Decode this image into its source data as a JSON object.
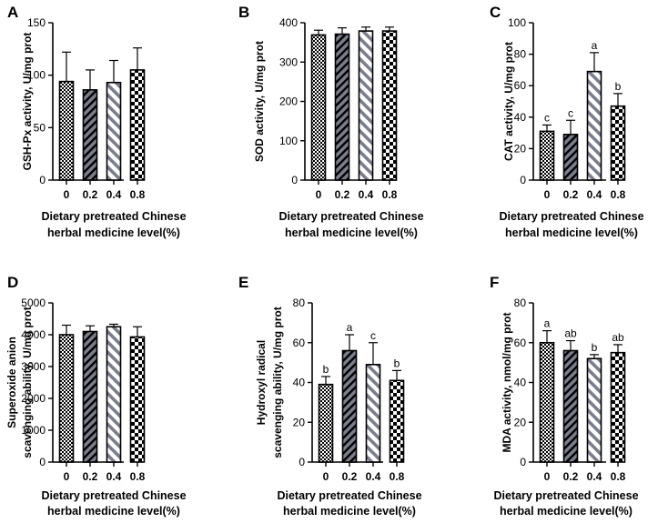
{
  "chart_data": [
    {
      "id": "A",
      "type": "bar",
      "panel_label": "A",
      "categories": [
        "0",
        "0.2",
        "0.4",
        "0.8"
      ],
      "values": [
        94,
        86,
        93,
        105
      ],
      "errors": [
        28,
        19,
        21,
        21
      ],
      "letters": [
        "",
        "",
        "",
        ""
      ],
      "ylabel": "GSH-Px activity, U/mg prot",
      "xlabel_lines": [
        "Dietary pretreated Chinese",
        "herbal medicine level(%)"
      ],
      "ylim": [
        0,
        150
      ],
      "yticks": [
        0,
        50,
        100,
        150
      ],
      "grid": false
    },
    {
      "id": "B",
      "type": "bar",
      "panel_label": "B",
      "categories": [
        "0",
        "0.2",
        "0.4",
        "0.8"
      ],
      "values": [
        369,
        371,
        379,
        379
      ],
      "errors": [
        12,
        16,
        10,
        10
      ],
      "letters": [
        "",
        "",
        "",
        ""
      ],
      "ylabel": "SOD activity, U/mg prot",
      "xlabel_lines": [
        "Dietary pretreated Chinese",
        "herbal medicine level(%)"
      ],
      "ylim": [
        0,
        400
      ],
      "yticks": [
        0,
        100,
        200,
        300,
        400
      ],
      "grid": false
    },
    {
      "id": "C",
      "type": "bar",
      "panel_label": "C",
      "categories": [
        "0",
        "0.2",
        "0.4",
        "0.8"
      ],
      "values": [
        31,
        29,
        69,
        47
      ],
      "errors": [
        4,
        9,
        12,
        8
      ],
      "letters": [
        "c",
        "c",
        "a",
        "b"
      ],
      "ylabel": "CAT activity, U/mg prot",
      "xlabel_lines": [
        "Dietary pretreated Chinese",
        "herbal medicine level(%)"
      ],
      "ylim": [
        0,
        100
      ],
      "yticks": [
        0,
        20,
        40,
        60,
        80,
        100
      ],
      "grid": false
    },
    {
      "id": "D",
      "type": "bar",
      "panel_label": "D",
      "categories": [
        "0",
        "0.2",
        "0.4",
        "0.8"
      ],
      "values": [
        4000,
        4100,
        4250,
        3930
      ],
      "errors": [
        300,
        180,
        80,
        320
      ],
      "letters": [
        "",
        "",
        "",
        ""
      ],
      "ylabel_lines": [
        "Superoxide anion",
        "scavenging ability, U/mg prot"
      ],
      "xlabel_lines": [
        "Dietary pretreated Chinese",
        "herbal medicine level(%)"
      ],
      "ylim": [
        0,
        5000
      ],
      "yticks": [
        0,
        1000,
        2000,
        3000,
        4000,
        5000
      ],
      "grid": false
    },
    {
      "id": "E",
      "type": "bar",
      "panel_label": "E",
      "categories": [
        "0",
        "0.2",
        "0.4",
        "0.8"
      ],
      "values": [
        39,
        56,
        49,
        41
      ],
      "errors": [
        4,
        8,
        11,
        5
      ],
      "letters": [
        "b",
        "a",
        "c",
        "b"
      ],
      "ylabel_lines": [
        "Hydroxyl radical",
        "scavenging ability, U/mg prot"
      ],
      "xlabel_lines": [
        "Dietary pretreated Chinese",
        "herbal medicine level(%)"
      ],
      "ylim": [
        0,
        80
      ],
      "yticks": [
        0,
        20,
        40,
        60,
        80
      ],
      "grid": false
    },
    {
      "id": "F",
      "type": "bar",
      "panel_label": "F",
      "categories": [
        "0",
        "0.2",
        "0.4",
        "0.8"
      ],
      "values": [
        60,
        56,
        52,
        55
      ],
      "errors": [
        6,
        5,
        2,
        4
      ],
      "letters": [
        "a",
        "ab",
        "b",
        "ab"
      ],
      "ylabel": "MDA activity, nmol/mg prot",
      "xlabel_lines": [
        "Dietary pretreated Chinese",
        "herbal medicine level(%)"
      ],
      "ylim": [
        0,
        80
      ],
      "yticks": [
        0,
        20,
        40,
        60,
        80
      ],
      "grid": false
    }
  ],
  "bar_patterns": [
    "dots-icon",
    "narrow-diagonal-stripes-icon",
    "wide-diagonal-stripes-icon",
    "checkerboard-icon"
  ],
  "colors": {
    "bar_fill": "#7a7d8c",
    "stroke": "#000000",
    "background": "#ffffff"
  }
}
